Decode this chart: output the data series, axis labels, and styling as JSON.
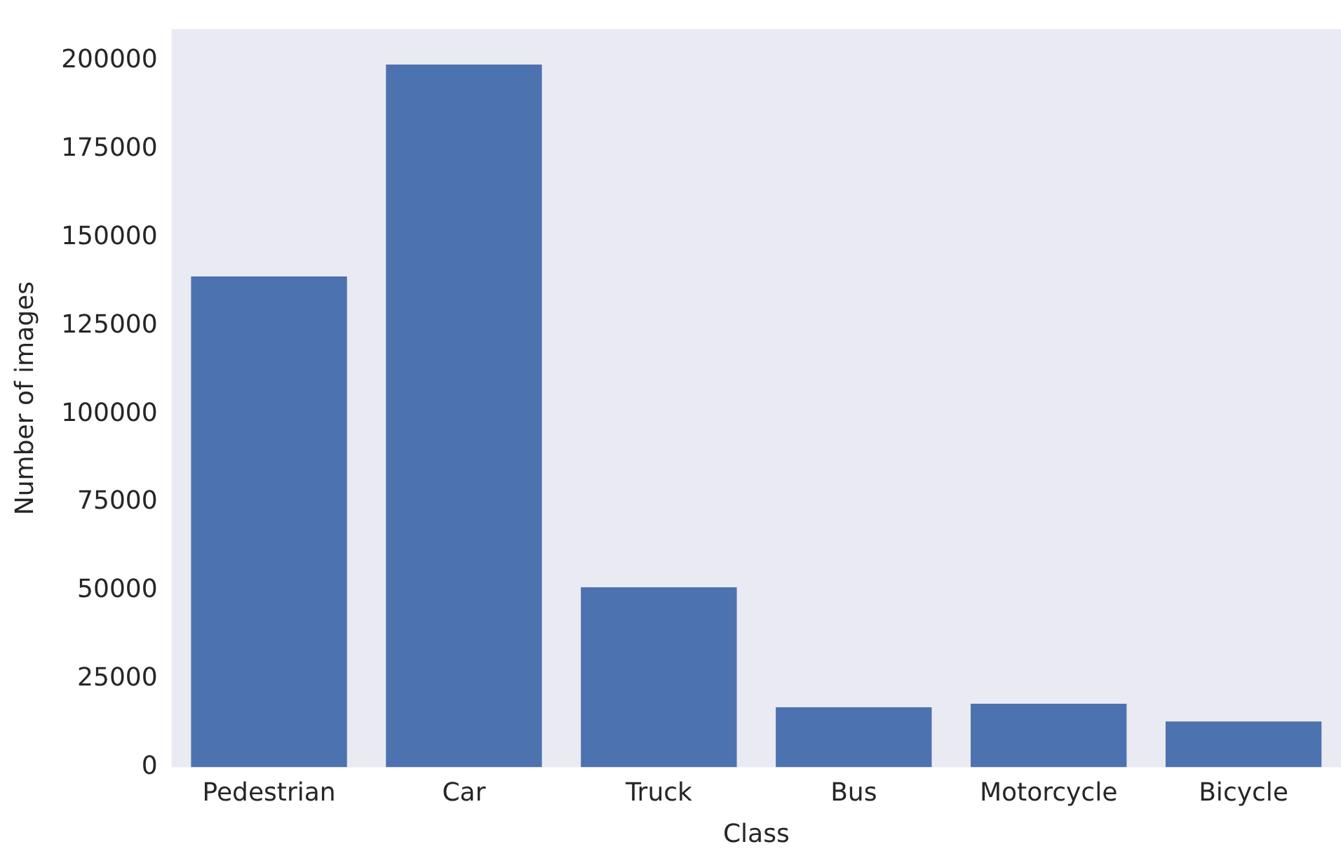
{
  "chart_data": {
    "type": "bar",
    "xlabel": "Class",
    "ylabel": "Number of images",
    "categories": [
      "Pedestrian",
      "Car",
      "Truck",
      "Bus",
      "Motorcycle",
      "Bicycle"
    ],
    "values": [
      139000,
      199000,
      51000,
      17000,
      18000,
      13000
    ],
    "color": "#4c72b0",
    "ylim": [
      0,
      209000
    ],
    "yticks": [
      0,
      25000,
      50000,
      75000,
      100000,
      125000,
      150000,
      175000,
      200000
    ],
    "grid": false,
    "legend": false
  }
}
